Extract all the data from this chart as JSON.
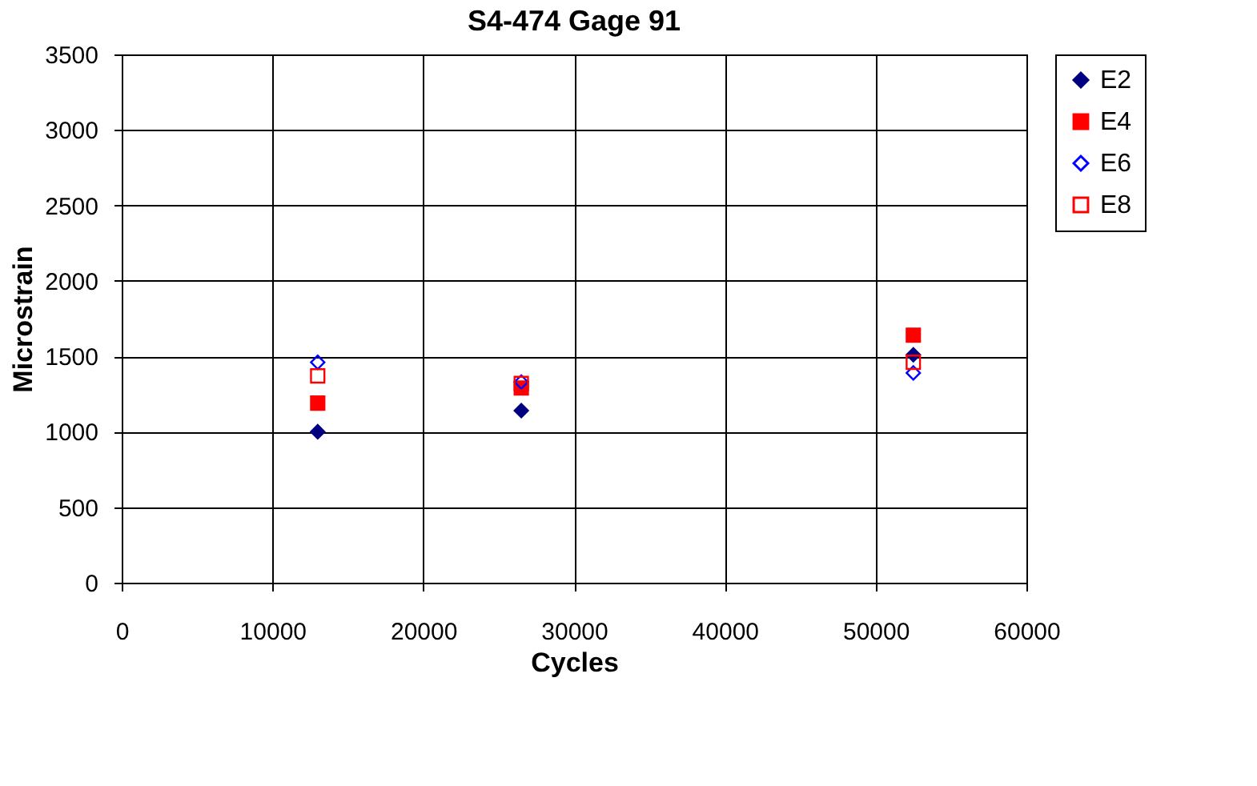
{
  "chart_data": {
    "type": "scatter",
    "title": "S4-474 Gage 91",
    "xlabel": "Cycles",
    "ylabel": "Microstrain",
    "x": [
      13000,
      26500,
      52500
    ],
    "series": [
      {
        "name": "E2",
        "color": "#000080",
        "marker": "diamond",
        "values": [
          1000,
          1140,
          1510
        ]
      },
      {
        "name": "E4",
        "color": "#ff0000",
        "marker": "square",
        "values": [
          1190,
          1290,
          1640
        ]
      },
      {
        "name": "E6",
        "color": "#0000ff",
        "marker": "diamond",
        "values": [
          1460,
          1330,
          1390
        ]
      },
      {
        "name": "E8",
        "color": "#ff0000",
        "marker": "square",
        "values": [
          1370,
          1320,
          1460
        ]
      }
    ],
    "xlim": [
      0,
      60000
    ],
    "xticks": [
      0,
      10000,
      20000,
      30000,
      40000,
      50000,
      60000
    ],
    "ylim": [
      0,
      3500
    ],
    "yticks": [
      0,
      500,
      1000,
      1500,
      2000,
      2500,
      3000,
      3500
    ],
    "grid": true,
    "legend": "right"
  }
}
